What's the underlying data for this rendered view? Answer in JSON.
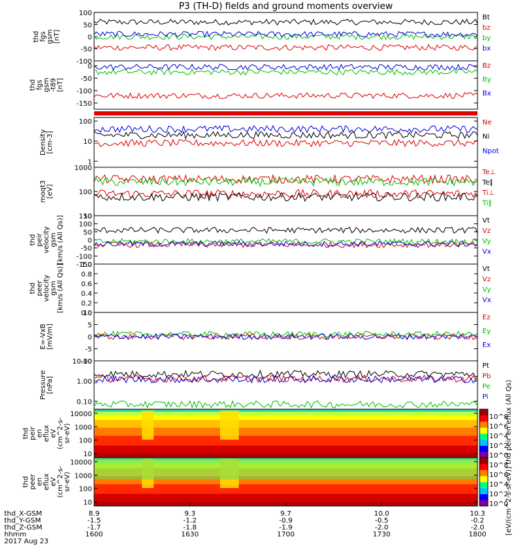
{
  "chart_data": {
    "type": "line",
    "title": "P3 (TH-D) fields and ground moments overview",
    "x_ticks": [
      "1600",
      "1630",
      "1700",
      "1730",
      "1800"
    ],
    "x_label": "hhmm",
    "date_label": "2017 Aug 23",
    "ephemeris": [
      {
        "label": "thd_X-GSM",
        "values": [
          "8.9",
          "9.3",
          "9.7",
          "10.0",
          "10.3"
        ]
      },
      {
        "label": "thd_Y-GSM",
        "values": [
          "-1.5",
          "-1.2",
          "-0.9",
          "-0.5",
          "-0.2"
        ]
      },
      {
        "label": "thd_Z-GSM",
        "values": [
          "-1.7",
          "-1.8",
          "-1.9",
          "-2.0",
          "-2.0"
        ]
      }
    ],
    "panels": [
      {
        "id": "fgs_gsm",
        "ylabel": [
          "thd",
          "fgs",
          "gsm",
          "[nT]"
        ],
        "scale": "linear",
        "ylim": [
          -100,
          100
        ],
        "ticks": [
          "100",
          "50",
          "0",
          "-50",
          "-100"
        ],
        "series": [
          {
            "name": "Bt",
            "color": "#000000",
            "level": 60
          },
          {
            "name": "bz",
            "color": "#e00000",
            "level": -45
          },
          {
            "name": "by",
            "color": "#00c000",
            "level": 0
          },
          {
            "name": "bx",
            "color": "#0000e0",
            "level": 10
          }
        ]
      },
      {
        "id": "fgs_gsm_t89",
        "ylabel": [
          "thd",
          "fgs",
          "gsm",
          "-t89",
          "[nT]"
        ],
        "scale": "linear",
        "ylim": [
          -175,
          20
        ],
        "ticks": [
          "0",
          "-50",
          "-100",
          "-150"
        ],
        "series": [
          {
            "name": "Bz",
            "color": "#e00000",
            "level": -120
          },
          {
            "name": "By",
            "color": "#00c000",
            "level": -25
          },
          {
            "name": "Bx",
            "color": "#0000e0",
            "level": -5
          }
        ]
      },
      {
        "id": "density",
        "ylabel": [
          "Density",
          "[cm-3]"
        ],
        "scale": "log",
        "ylim": [
          0.5,
          150
        ],
        "ticks": [
          "100",
          "10",
          "1"
        ],
        "series": [
          {
            "name": "Ne",
            "color": "#e00000",
            "level": 8
          },
          {
            "name": "Ni",
            "color": "#000000",
            "level": 20
          },
          {
            "name": "Npot",
            "color": "#0000e0",
            "level": 40
          }
        ]
      },
      {
        "id": "temperature",
        "ylabel": [
          "moqt3",
          "[eV]"
        ],
        "scale": "log",
        "ylim": [
          10,
          1000
        ],
        "ticks": [
          "1000",
          "100",
          "10"
        ],
        "series": [
          {
            "name": "Te⊥",
            "color": "#e00000",
            "level": 80
          },
          {
            "name": "Te∥",
            "color": "#000000",
            "level": 60
          },
          {
            "name": "Ti⊥",
            "color": "#e00000",
            "level": 320
          },
          {
            "name": "Ti∥",
            "color": "#00c000",
            "level": 250
          }
        ]
      },
      {
        "id": "peir_velocity",
        "ylabel": [
          "thd",
          "peir",
          "velocity",
          "gsm",
          "[km/s (All Qs)]"
        ],
        "scale": "linear",
        "ylim": [
          -150,
          150
        ],
        "ticks": [
          "150",
          "100",
          "50",
          "0",
          "-50",
          "-100",
          "-150"
        ],
        "series": [
          {
            "name": "Vt",
            "color": "#000000",
            "level": 60
          },
          {
            "name": "Vz",
            "color": "#e00000",
            "level": -30
          },
          {
            "name": "Vy",
            "color": "#00c000",
            "level": -10
          },
          {
            "name": "Vx",
            "color": "#0000e0",
            "level": -25
          }
        ]
      },
      {
        "id": "peer_velocity",
        "ylabel": [
          "thd",
          "peer",
          "velocity",
          "gsm",
          "[km/s (All Qs)]"
        ],
        "scale": "linear",
        "ylim": [
          0,
          1
        ],
        "ticks": [
          "1.0",
          "0.8",
          "0.6",
          "0.4",
          "0.2",
          "0.0"
        ],
        "series": [
          {
            "name": "Vt",
            "color": "#000000"
          },
          {
            "name": "Vz",
            "color": "#e00000"
          },
          {
            "name": "Vy",
            "color": "#00c000"
          },
          {
            "name": "Vx",
            "color": "#0000e0"
          }
        ]
      },
      {
        "id": "efield",
        "ylabel": [
          "E=-VxB",
          "[mV/m]"
        ],
        "scale": "linear",
        "ylim": [
          -10,
          10
        ],
        "ticks": [
          "10",
          "5",
          "0",
          "-5",
          "-10"
        ],
        "series": [
          {
            "name": "Ez",
            "color": "#e00000",
            "level": 0
          },
          {
            "name": "Ey",
            "color": "#00c000",
            "level": 1
          },
          {
            "name": "Ex",
            "color": "#0000e0",
            "level": 0
          }
        ]
      },
      {
        "id": "pressure",
        "ylabel": [
          "Pressure",
          "[nPa]"
        ],
        "scale": "log",
        "ylim": [
          0.04,
          10
        ],
        "ticks": [
          "10.00",
          "1.00",
          "0.10"
        ],
        "series": [
          {
            "name": "Pt",
            "color": "#000000",
            "level": 2.2
          },
          {
            "name": "Pb",
            "color": "#e00000",
            "level": 1.3
          },
          {
            "name": "Pe",
            "color": "#00c000",
            "level": 0.07
          },
          {
            "name": "Pi",
            "color": "#0000e0",
            "level": 1.2
          }
        ]
      },
      {
        "id": "peir_spec",
        "ylabel": [
          "thd",
          "peir",
          "en",
          "eflux",
          "eV",
          "(cm^2-s-",
          "sr-eV)"
        ],
        "scale": "log",
        "ylim": [
          5,
          20000
        ],
        "ticks": [
          "10000",
          "1000",
          "100",
          "10"
        ]
      },
      {
        "id": "peer_spec",
        "ylabel": [
          "thd",
          "peer",
          "en",
          "eflux",
          "eV",
          "(cm^2-s-",
          "sr-eV)"
        ],
        "scale": "log",
        "ylim": [
          5,
          20000
        ],
        "ticks": [
          "10000",
          "1000",
          "100",
          "10"
        ]
      }
    ],
    "colorbar": {
      "scale": "log",
      "ticks_top": [
        "10^8",
        "10^6",
        "10^4",
        "10^2",
        "10^0"
      ],
      "ticks_bottom": [
        "10^8",
        "10^6",
        "10^4",
        "10^2",
        "10^0"
      ],
      "label": "[eV/(cm^2-s-sr-eV)] thd peir en eflux (All Qs)"
    }
  }
}
